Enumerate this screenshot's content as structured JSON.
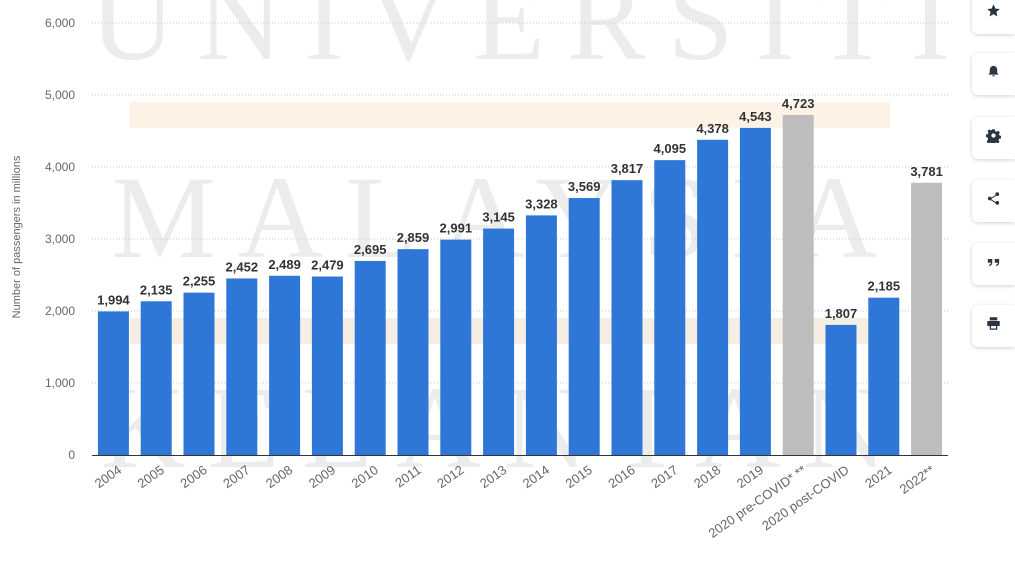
{
  "watermark": {
    "line1": "UNIVERSITI",
    "line2": "MALAYSIA",
    "line3": "KELANTAN"
  },
  "chart_data": {
    "type": "bar",
    "ylabel": "Number of passengers in millions",
    "ylim": [
      0,
      6000
    ],
    "yticks": [
      "0",
      "1,000",
      "2,000",
      "3,000",
      "4,000",
      "5,000",
      "6,000"
    ],
    "grid": true,
    "categories": [
      "2004",
      "2005",
      "2006",
      "2007",
      "2008",
      "2009",
      "2010",
      "2011",
      "2012",
      "2013",
      "2014",
      "2015",
      "2016",
      "2017",
      "2018",
      "2019",
      "2020 pre-COVID* **",
      "2020 post-COVID",
      "2021",
      "2022**"
    ],
    "values": [
      1994,
      2135,
      2255,
      2452,
      2489,
      2479,
      2695,
      2859,
      2991,
      3145,
      3328,
      3569,
      3817,
      4095,
      4378,
      4543,
      4723,
      1807,
      2185,
      3781
    ],
    "value_labels": [
      "1,994",
      "2,135",
      "2,255",
      "2,452",
      "2,489",
      "2,479",
      "2,695",
      "2,859",
      "2,991",
      "3,145",
      "3,328",
      "3,569",
      "3,817",
      "4,095",
      "4,378",
      "4,543",
      "4,723",
      "1,807",
      "2,185",
      "3,781"
    ],
    "bar_colors": [
      "#2f77d6",
      "#2f77d6",
      "#2f77d6",
      "#2f77d6",
      "#2f77d6",
      "#2f77d6",
      "#2f77d6",
      "#2f77d6",
      "#2f77d6",
      "#2f77d6",
      "#2f77d6",
      "#2f77d6",
      "#2f77d6",
      "#2f77d6",
      "#2f77d6",
      "#2f77d6",
      "#bdbdbd",
      "#2f77d6",
      "#2f77d6",
      "#bdbdbd"
    ]
  },
  "sidebar": {
    "buttons": [
      {
        "name": "favorite-button",
        "icon": "star-icon"
      },
      {
        "name": "notification-button",
        "icon": "bell-icon"
      },
      {
        "name": "settings-button",
        "icon": "gear-icon"
      },
      {
        "name": "share-button",
        "icon": "share-icon"
      },
      {
        "name": "cite-button",
        "icon": "quote-icon"
      },
      {
        "name": "print-button",
        "icon": "printer-icon"
      }
    ]
  }
}
